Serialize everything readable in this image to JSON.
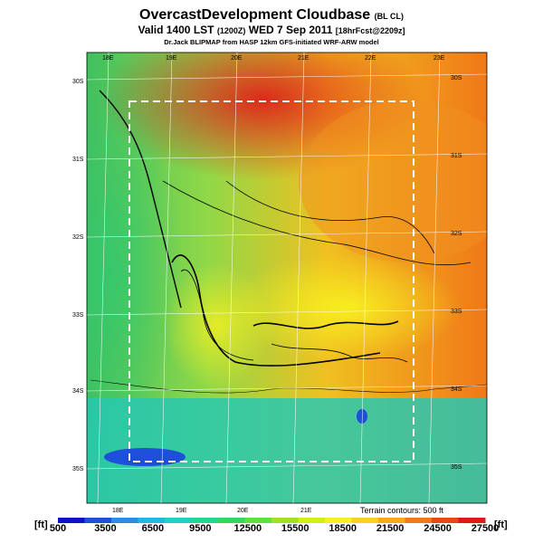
{
  "title": {
    "main": "OvercastDevelopment Cloudbase",
    "main_suffix": "(BL CL)",
    "valid": "Valid 1400 LST",
    "valid_code": "(1200Z)",
    "valid_date": "WED 7 Sep 2011",
    "forecast": "[18hrFcst@2209z]",
    "credit": "Dr.Jack BLIPMAP from HASP 12km GFS-initiated WRF-ARW model"
  },
  "map": {
    "lon_labels_top": [
      "18E",
      "19E",
      "20E",
      "21E",
      "22E",
      "23E"
    ],
    "lon_labels_bottom": [
      "18E",
      "19E",
      "20E",
      "21E"
    ],
    "lat_labels_left": [
      "30S",
      "31S",
      "32S",
      "33S",
      "34S",
      "35S"
    ],
    "lat_labels_right": [
      "30S",
      "31S",
      "32S",
      "33S",
      "34S",
      "35S"
    ],
    "terrain_note": "Terrain contours: 500 ft"
  },
  "colorbar": {
    "unit_left": "[ft]",
    "unit_right": "[ft]",
    "labels": [
      "500",
      "3500",
      "6500",
      "9500",
      "12500",
      "15500",
      "18500",
      "21500",
      "24500",
      "27500"
    ],
    "colors": [
      "#1010c8",
      "#1e4fd8",
      "#2c8ce8",
      "#20b8e0",
      "#20d0c0",
      "#20d890",
      "#30d860",
      "#60e040",
      "#a0e020",
      "#d0f010",
      "#f8f020",
      "#f8d020",
      "#f8a818",
      "#f07818",
      "#e84818",
      "#e01818"
    ]
  }
}
